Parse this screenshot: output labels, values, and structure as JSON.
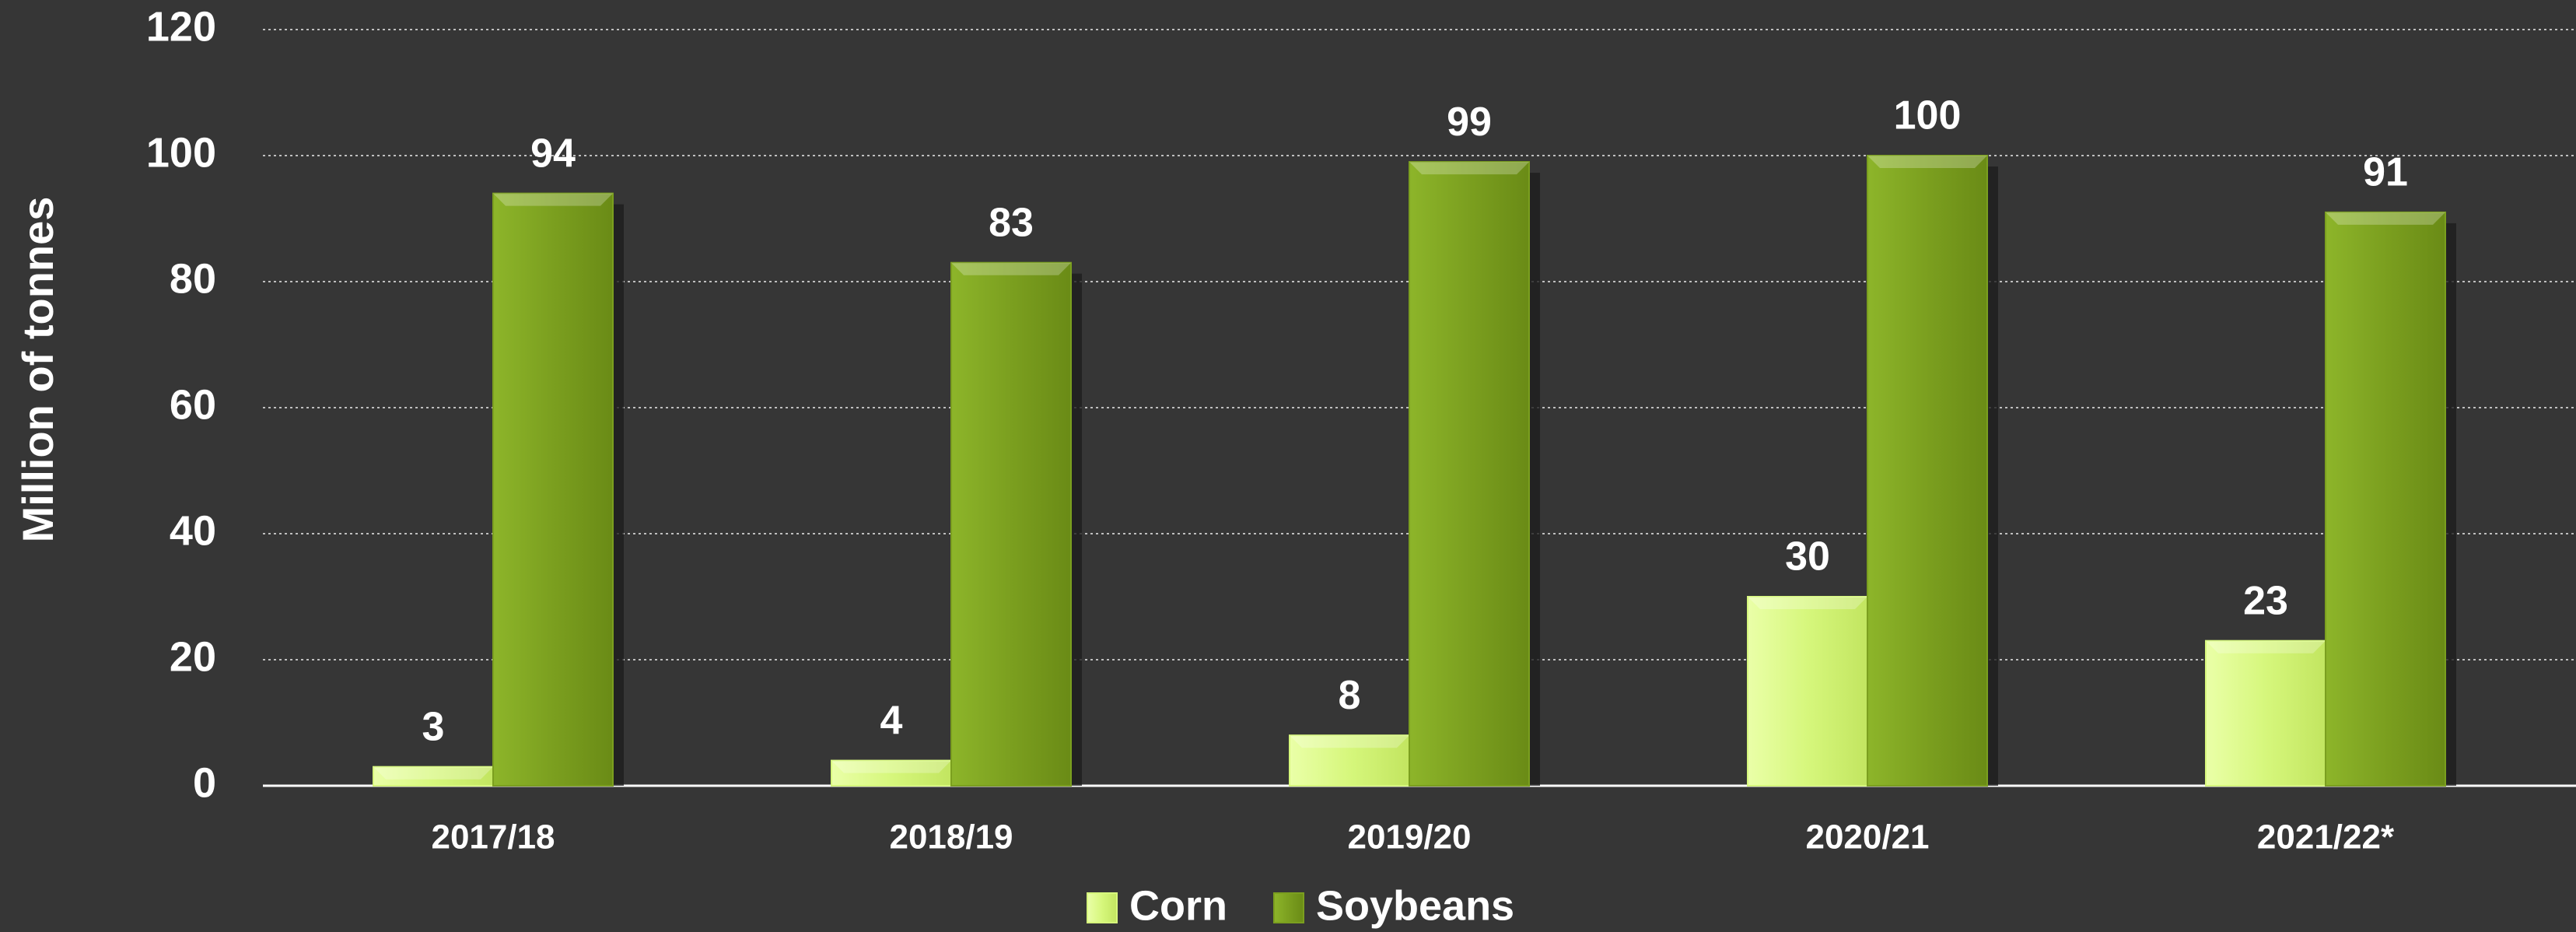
{
  "chart_data": {
    "type": "bar",
    "y_label": "Million of tonnes",
    "categories": [
      "2017/18",
      "2018/19",
      "2019/20",
      "2020/21",
      "2021/22*"
    ],
    "series": [
      {
        "name": "Corn",
        "color": "#d6f77c",
        "values": [
          3,
          4,
          8,
          30,
          23
        ]
      },
      {
        "name": "Soybeans",
        "color": "#7b9f1f",
        "values": [
          94,
          83,
          99,
          100,
          91
        ]
      }
    ],
    "ylim": [
      0,
      120
    ],
    "yticks": [
      0,
      20,
      40,
      60,
      80,
      100,
      120
    ],
    "grid": true,
    "legend": "bottom"
  }
}
